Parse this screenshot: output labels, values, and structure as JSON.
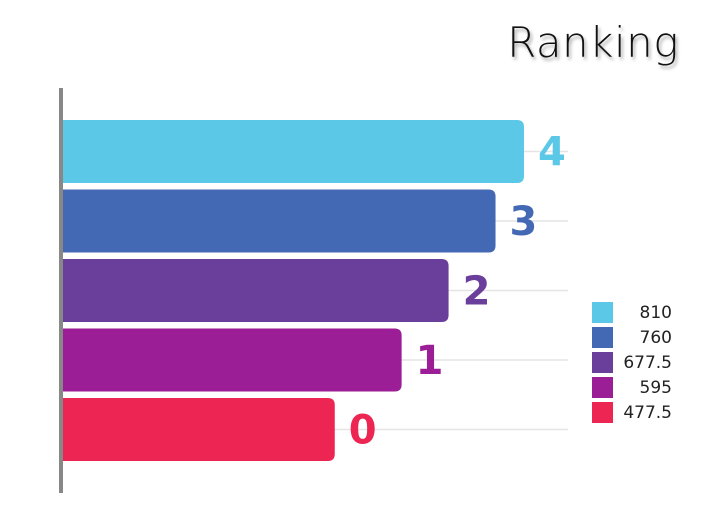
{
  "chart_data": {
    "type": "bar",
    "orientation": "horizontal",
    "title": "Ranking",
    "categories": [
      "4",
      "3",
      "2",
      "1",
      "0"
    ],
    "values": [
      810,
      760,
      677.5,
      595,
      477.5
    ],
    "colors": [
      "#5BC8E8",
      "#4469B4",
      "#6A3F9B",
      "#9B1E96",
      "#EC2552"
    ],
    "legend": {
      "position": "right",
      "entries": [
        "810",
        "760",
        "677.5",
        "595",
        "477.5"
      ]
    },
    "xlim": [
      0,
      810
    ],
    "grid": true
  }
}
